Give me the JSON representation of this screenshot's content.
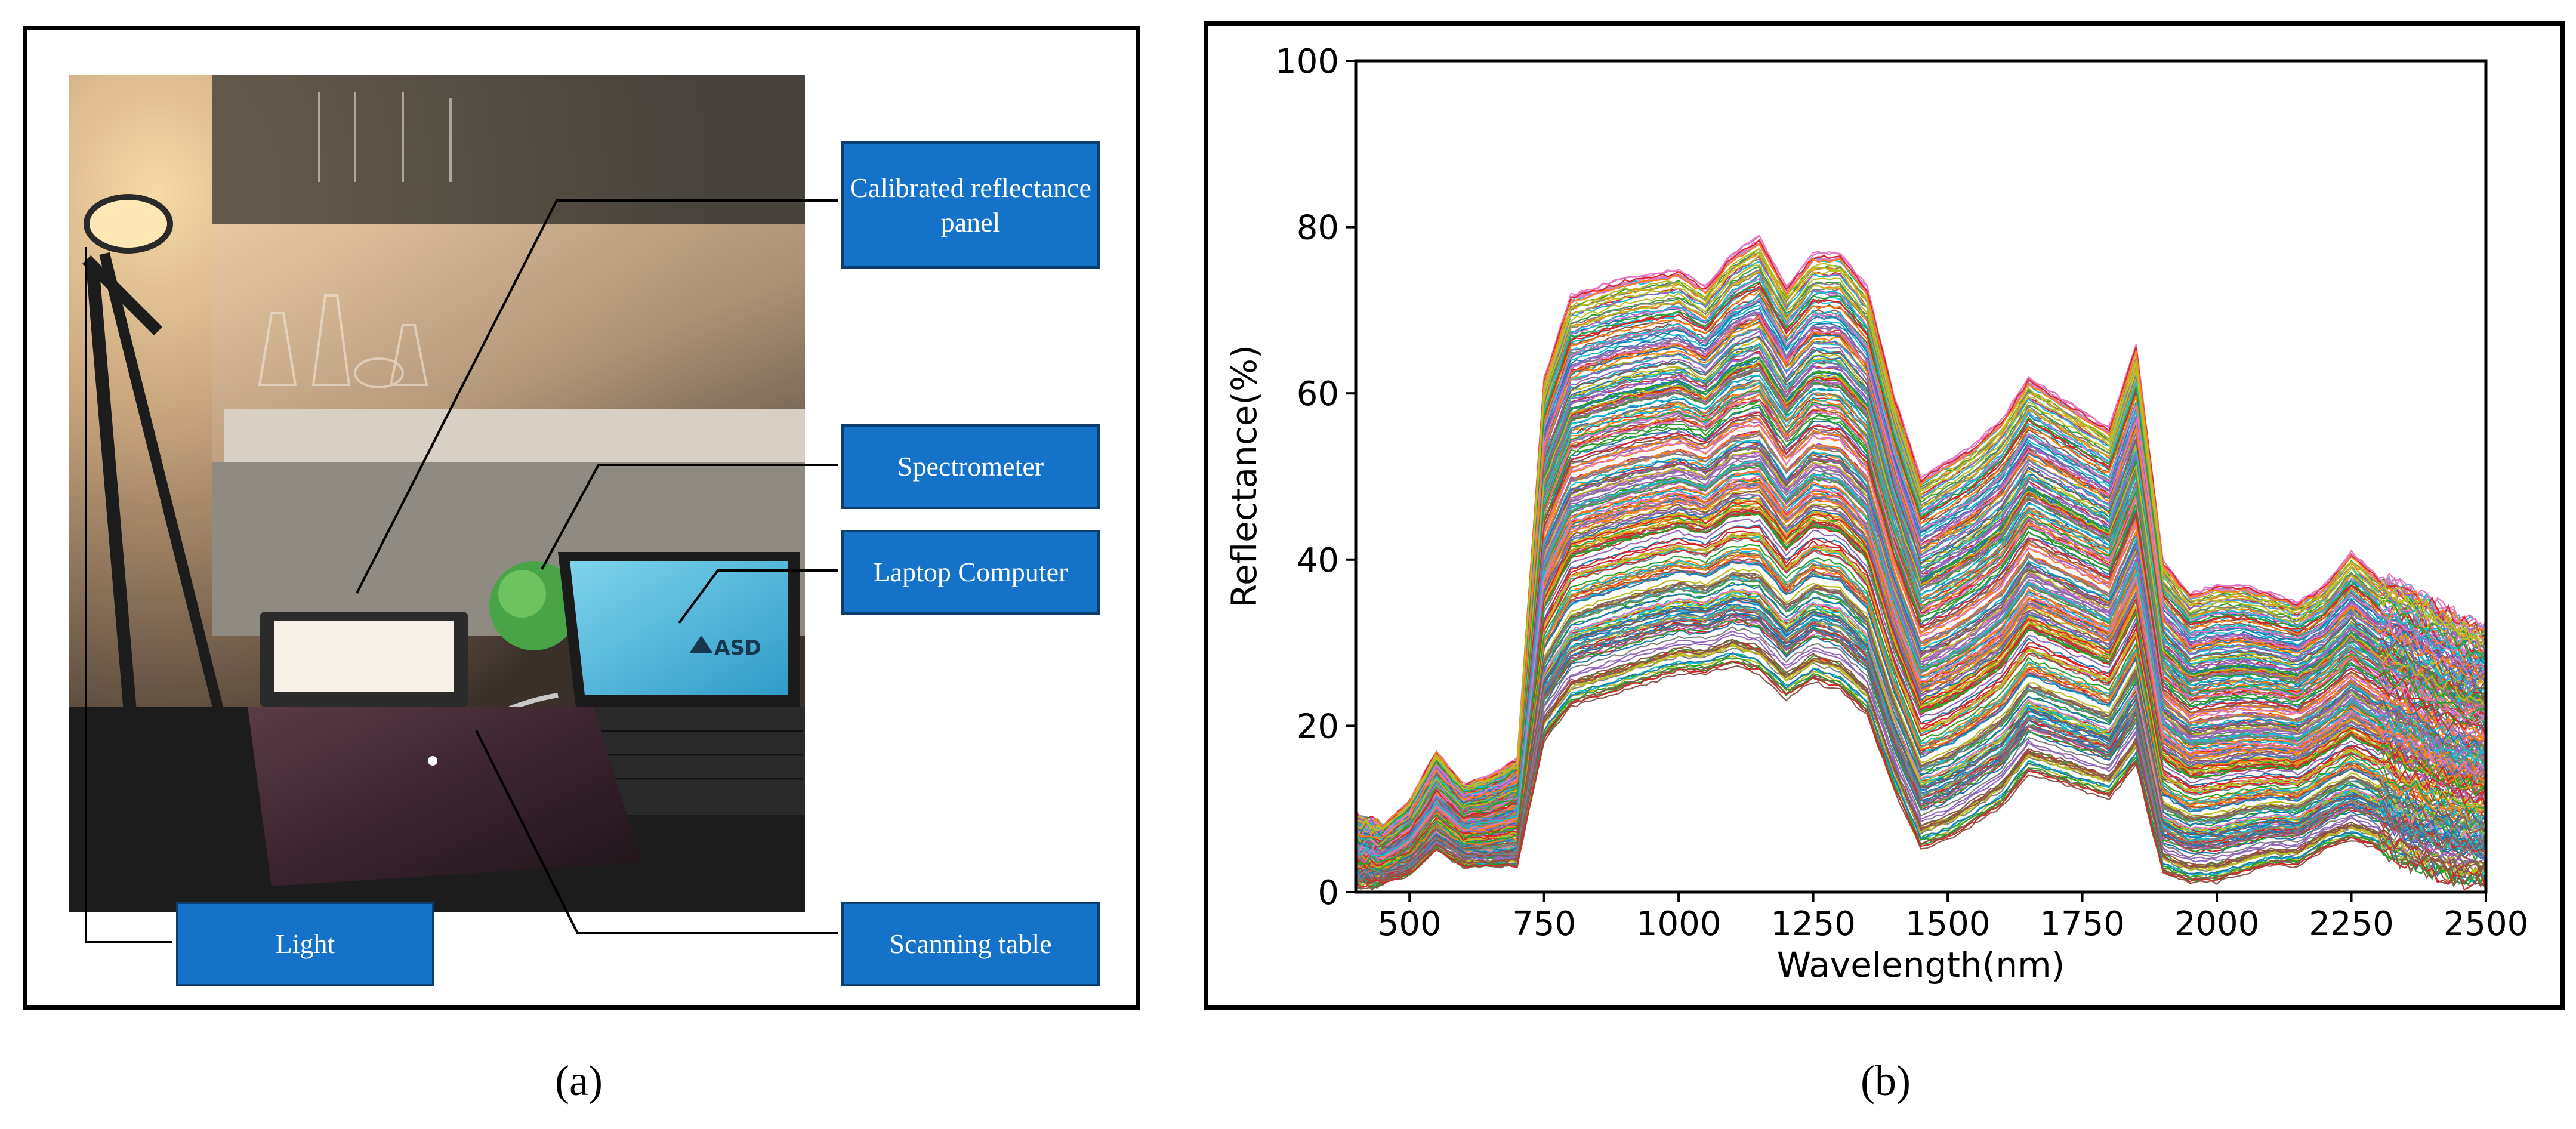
{
  "panel_a": {
    "labels": {
      "calibrated_panel": "Calibrated reflectance panel",
      "spectrometer": "Spectrometer",
      "laptop": "Laptop Computer",
      "light": "Light",
      "scanning_table": "Scanning table"
    },
    "laptop_logo": "ASD",
    "caption": "(a)",
    "colors": {
      "label_fill": "#1473c9",
      "label_border": "#0d3d6e"
    }
  },
  "panel_b": {
    "caption": "(b)"
  },
  "chart_data": {
    "type": "line",
    "title": "",
    "xlabel": "Wavelength(nm)",
    "ylabel": "Reflectance(%)",
    "xlim": [
      400,
      2500
    ],
    "ylim": [
      0,
      100
    ],
    "xticks": [
      500,
      750,
      1000,
      1250,
      1500,
      1750,
      2000,
      2250,
      2500
    ],
    "yticks": [
      0,
      20,
      40,
      60,
      80,
      100
    ],
    "grid": false,
    "n_series_shown": 300,
    "series_note": "hundreds of soil reflectance spectra, each with a different color",
    "envelope": {
      "wavelength_nm": [
        400,
        450,
        500,
        550,
        600,
        650,
        700,
        750,
        800,
        900,
        1000,
        1050,
        1100,
        1150,
        1200,
        1250,
        1300,
        1350,
        1400,
        1450,
        1500,
        1550,
        1600,
        1650,
        1700,
        1750,
        1800,
        1850,
        1900,
        1950,
        2000,
        2050,
        2100,
        2150,
        2200,
        2250,
        2300,
        2350,
        2400,
        2450,
        2500
      ],
      "upper_reflectance": [
        9,
        8,
        11,
        17,
        13,
        14,
        16,
        62,
        72,
        74,
        75,
        73,
        77,
        79,
        73,
        77,
        77,
        73,
        60,
        50,
        52,
        54,
        57,
        62,
        60,
        58,
        56,
        66,
        40,
        36,
        37,
        37,
        36,
        35,
        37,
        41,
        38,
        37,
        35,
        33,
        32
      ],
      "lower_reflectance": [
        1,
        1,
        2,
        5,
        3,
        3,
        3,
        18,
        22,
        24,
        26,
        26,
        27,
        26,
        23,
        25,
        24,
        21,
        12,
        5,
        6,
        8,
        10,
        14,
        13,
        12,
        11,
        15,
        2,
        1,
        1,
        2,
        3,
        3,
        5,
        6,
        5,
        3,
        2,
        1,
        1
      ]
    },
    "palette": [
      "#1f77b4",
      "#ff7f0e",
      "#2ca02c",
      "#d62728",
      "#9467bd",
      "#8c564b",
      "#e377c2",
      "#7f7f7f",
      "#bcbd22",
      "#17becf"
    ]
  }
}
